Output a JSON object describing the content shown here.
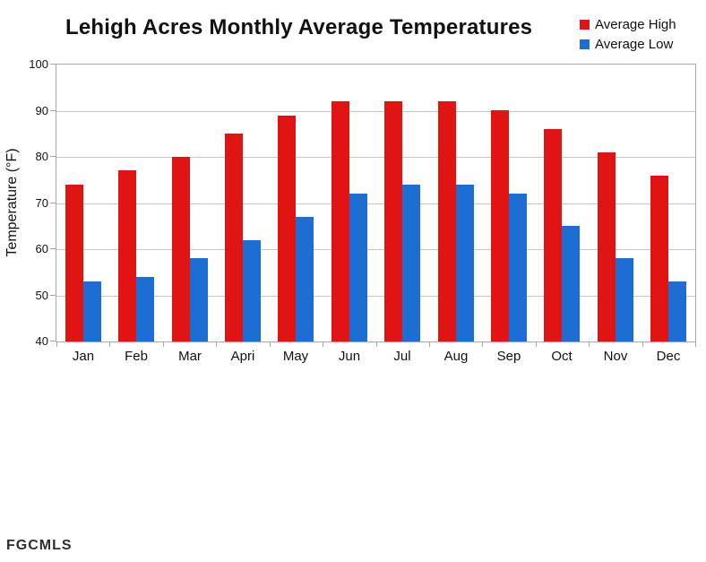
{
  "chart": {
    "title": "Lehigh Acres Monthly Average Temperatures",
    "ylabel": "Temperature (°F)",
    "legend": [
      "Average High",
      "Average Low"
    ],
    "watermark": "FGCMLS"
  },
  "colors": {
    "high": "#df1413",
    "low": "#1d6ed3",
    "gridline": "#c6c6c6",
    "axis": "#a8a8a8",
    "text": "#111111",
    "watermark": "#2e2e2e"
  },
  "chart_data": {
    "type": "bar",
    "title": "Lehigh Acres Monthly Average Temperatures",
    "xlabel": "",
    "ylabel": "Temperature (°F)",
    "categories": [
      "Jan",
      "Feb",
      "Mar",
      "Apri",
      "May",
      "Jun",
      "Jul",
      "Aug",
      "Sep",
      "Oct",
      "Nov",
      "Dec"
    ],
    "series": [
      {
        "name": "Average High",
        "color": "#df1413",
        "values": [
          74,
          77,
          80,
          85,
          89,
          92,
          92,
          92,
          90,
          86,
          81,
          76
        ]
      },
      {
        "name": "Average Low",
        "color": "#1d6ed3",
        "values": [
          53,
          54,
          58,
          62,
          67,
          72,
          74,
          74,
          72,
          65,
          58,
          53
        ]
      }
    ],
    "ylim": [
      40,
      100
    ],
    "yticks": [
      40,
      50,
      60,
      70,
      80,
      90,
      100
    ],
    "grid": true,
    "legend_position": "top-right"
  }
}
